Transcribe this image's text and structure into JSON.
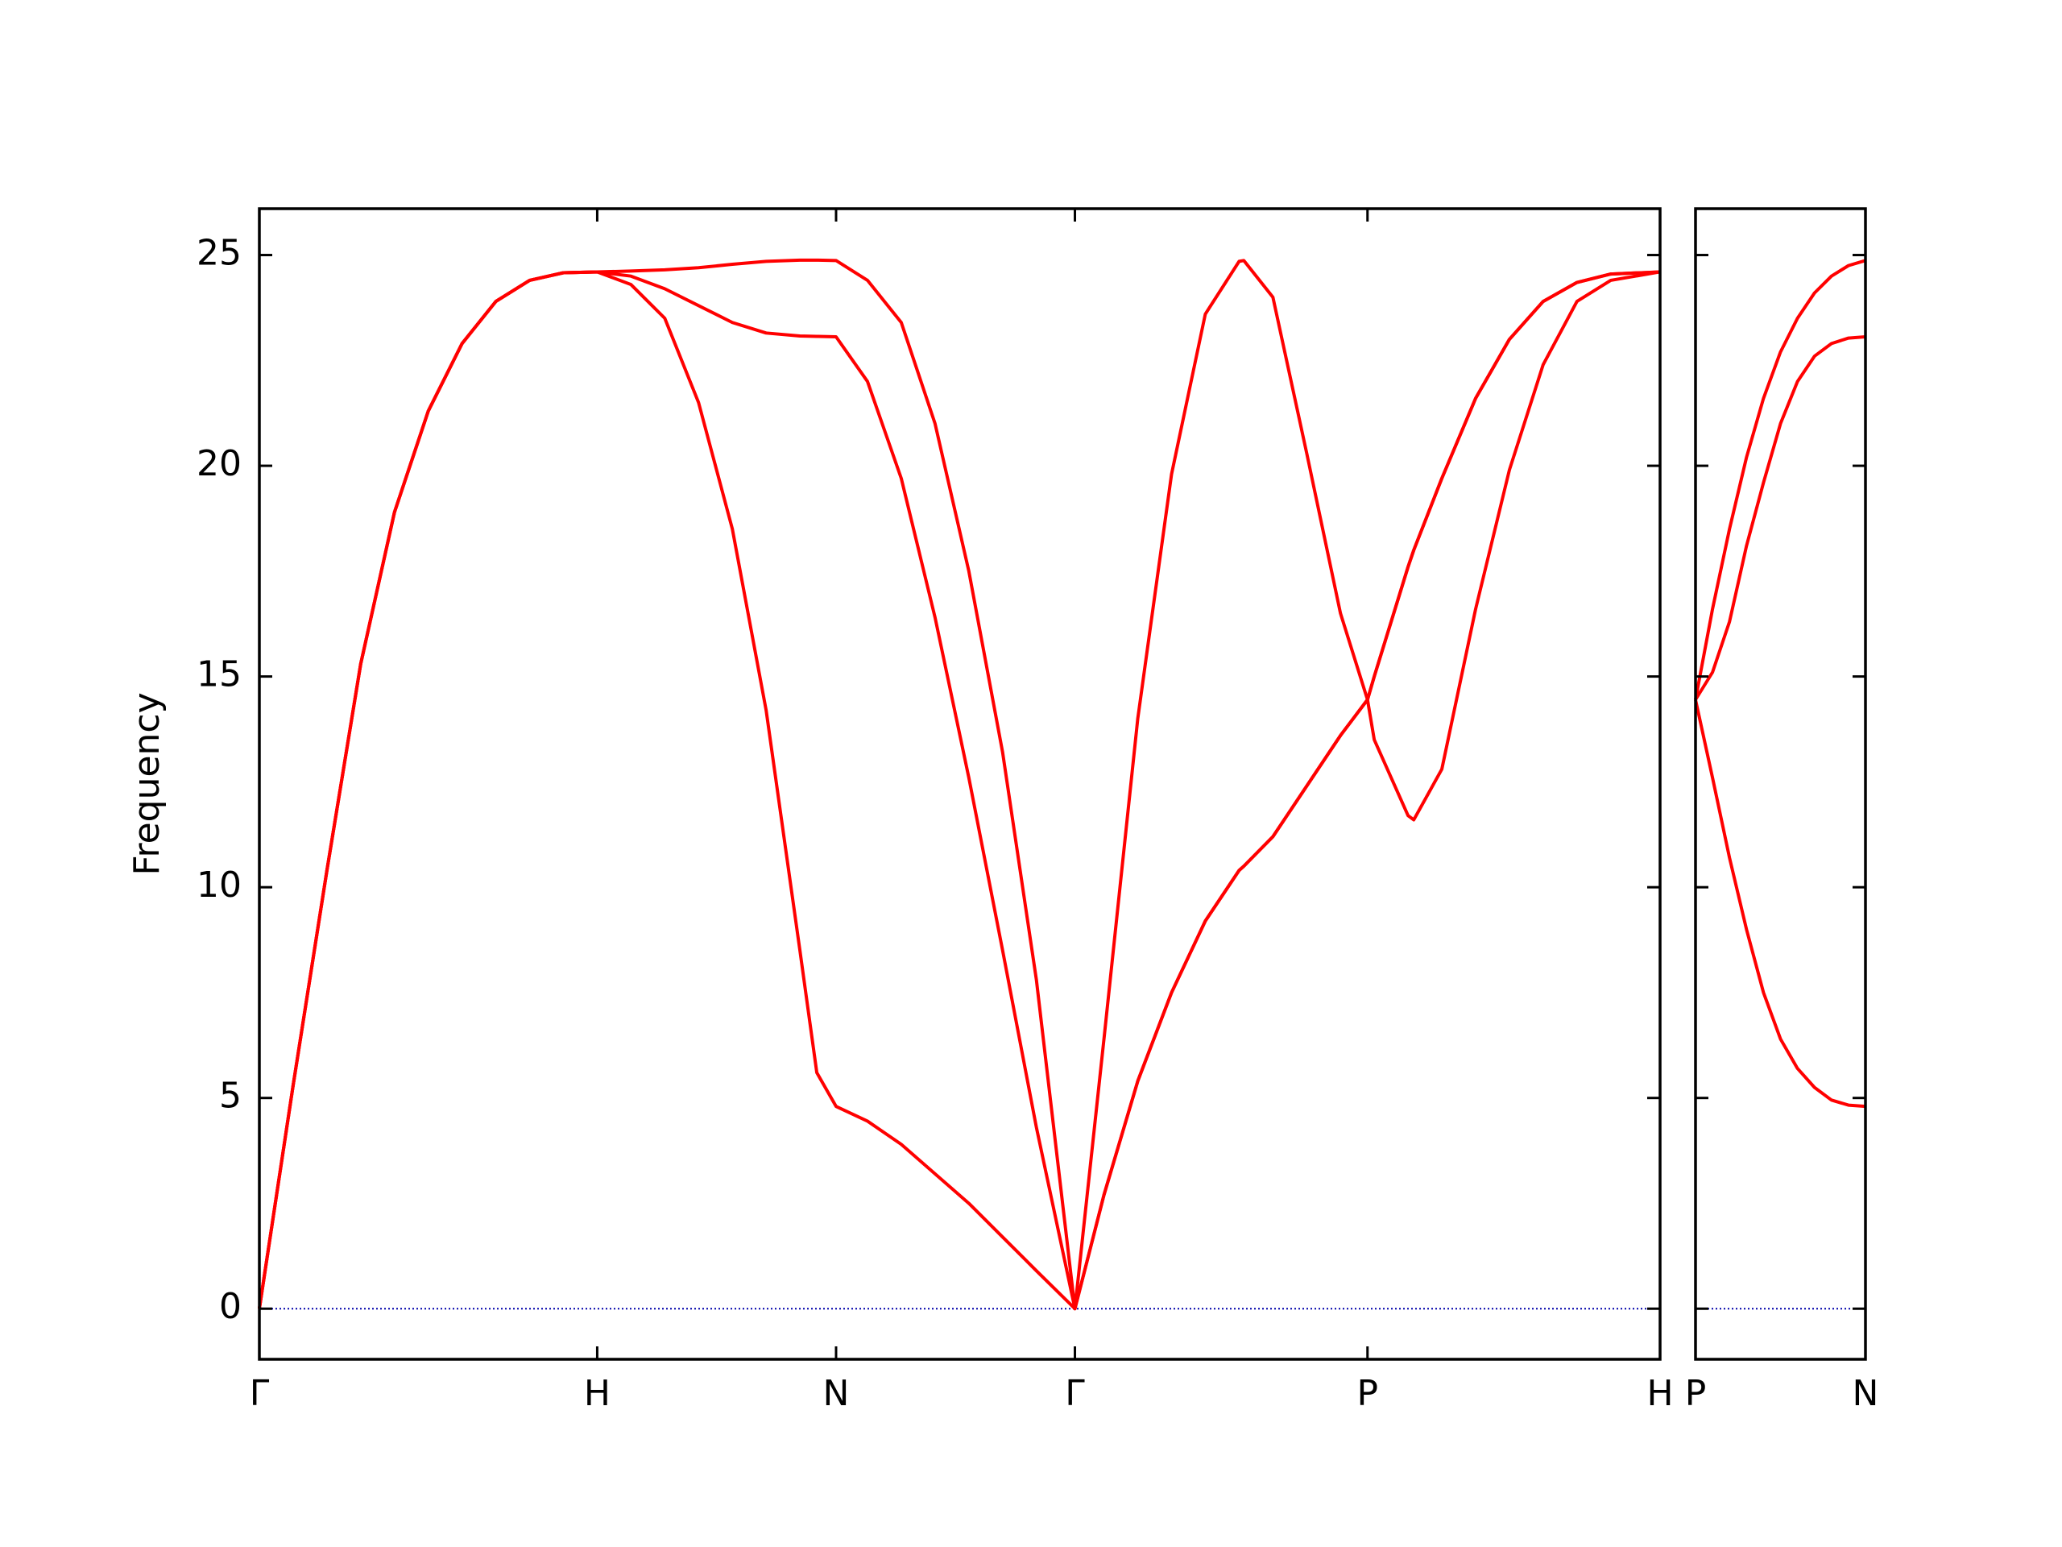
{
  "chart_data": [
    {
      "type": "line",
      "y_label": "Frequency",
      "x": [
        0,
        0.1,
        0.2,
        0.3,
        0.4,
        0.5,
        0.6,
        0.7,
        0.8,
        0.9,
        1.0,
        1.1,
        1.2,
        1.3,
        1.4,
        1.5,
        1.6,
        1.65,
        1.707,
        1.8,
        1.9,
        2.0,
        2.1,
        2.2,
        2.3,
        2.414,
        2.5,
        2.6,
        2.7,
        2.8,
        2.9,
        2.914,
        3.0,
        3.1,
        3.2,
        3.28,
        3.3,
        3.4,
        3.417,
        3.5,
        3.6,
        3.7,
        3.8,
        3.9,
        4.0,
        4.146
      ],
      "series": [
        {
          "color": "#ff0000",
          "values": [
            0,
            5.3,
            10.4,
            15.3,
            18.9,
            21.3,
            22.9,
            23.9,
            24.4,
            24.58,
            24.6,
            24.3,
            23.5,
            21.5,
            18.5,
            14.2,
            8.5,
            5.6,
            4.8,
            4.45,
            3.9,
            3.2,
            2.5,
            1.7,
            0.9,
            0,
            2.7,
            5.4,
            7.5,
            9.2,
            10.4,
            10.5,
            11.2,
            12.4,
            13.6,
            14.45,
            15.0,
            17.6,
            18.0,
            19.7,
            21.6,
            23.0,
            23.9,
            24.35,
            24.55,
            24.6
          ]
        },
        {
          "color": "#ff0000",
          "values": [
            0,
            5.3,
            10.4,
            15.3,
            18.9,
            21.3,
            22.9,
            23.9,
            24.4,
            24.58,
            24.6,
            24.5,
            24.2,
            23.8,
            23.4,
            23.15,
            23.08,
            23.07,
            23.06,
            22.0,
            19.7,
            16.4,
            12.6,
            8.5,
            4.3,
            0,
            2.7,
            5.4,
            7.5,
            9.2,
            10.4,
            10.5,
            11.2,
            12.4,
            13.6,
            14.45,
            15.0,
            17.6,
            18.0,
            19.7,
            21.6,
            23.0,
            23.9,
            24.35,
            24.55,
            24.6
          ]
        },
        {
          "color": "#ff0000",
          "values": [
            0,
            5.3,
            10.4,
            15.3,
            18.9,
            21.3,
            22.9,
            23.9,
            24.4,
            24.58,
            24.6,
            24.62,
            24.65,
            24.7,
            24.78,
            24.85,
            24.88,
            24.88,
            24.87,
            24.4,
            23.4,
            21.0,
            17.5,
            13.2,
            7.8,
            0,
            6.4,
            14.0,
            19.8,
            23.6,
            24.85,
            24.87,
            24.0,
            20.3,
            16.5,
            14.45,
            13.5,
            11.7,
            11.6,
            12.8,
            16.6,
            19.9,
            22.4,
            23.9,
            24.4,
            24.6
          ]
        }
      ],
      "xlim": [
        0,
        4.146
      ],
      "xticks": [
        {
          "value": 0,
          "label": "Γ"
        },
        {
          "value": 1.0,
          "label": "H"
        },
        {
          "value": 1.707,
          "label": "N"
        },
        {
          "value": 2.414,
          "label": "Γ"
        },
        {
          "value": 3.28,
          "label": "P"
        },
        {
          "value": 4.146,
          "label": "H"
        }
      ],
      "ylim": [
        -1.2,
        26.1
      ],
      "yticks": [
        0,
        5,
        10,
        15,
        20,
        25
      ],
      "show_ytick_labels": true,
      "zero_line": {
        "value": 0,
        "color": "#0000aa"
      }
    },
    {
      "type": "line",
      "x": [
        0,
        0.05,
        0.1,
        0.15,
        0.2,
        0.25,
        0.3,
        0.35,
        0.4,
        0.45,
        0.5
      ],
      "series": [
        {
          "color": "#ff0000",
          "values": [
            14.45,
            12.6,
            10.7,
            9.0,
            7.5,
            6.4,
            5.7,
            5.25,
            4.95,
            4.83,
            4.8
          ]
        },
        {
          "color": "#ff0000",
          "values": [
            14.45,
            15.1,
            16.3,
            18.1,
            19.6,
            21.0,
            22.0,
            22.6,
            22.9,
            23.03,
            23.06
          ]
        },
        {
          "color": "#ff0000",
          "values": [
            14.45,
            16.6,
            18.5,
            20.2,
            21.6,
            22.7,
            23.5,
            24.1,
            24.5,
            24.75,
            24.87
          ]
        }
      ],
      "xlim": [
        0,
        0.5
      ],
      "xticks": [
        {
          "value": 0,
          "label": "P"
        },
        {
          "value": 0.5,
          "label": "N"
        }
      ],
      "ylim": [
        -1.2,
        26.1
      ],
      "yticks": [
        0,
        5,
        10,
        15,
        20,
        25
      ],
      "show_ytick_labels": false,
      "zero_line": {
        "value": 0,
        "color": "#0000aa"
      }
    }
  ]
}
